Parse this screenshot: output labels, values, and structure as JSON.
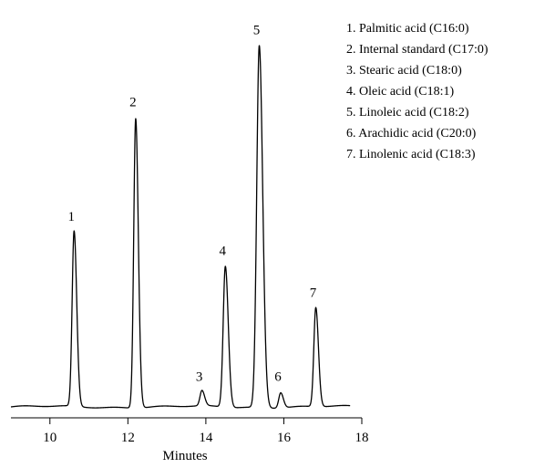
{
  "chart_data": {
    "type": "line",
    "title": "",
    "xlabel": "Minutes",
    "ylabel": "",
    "xlim": [
      9,
      18
    ],
    "ylim": [
      0,
      100
    ],
    "x_ticks": [
      10,
      12,
      14,
      16,
      18
    ],
    "x_tick_labels": [
      "10",
      "12",
      "14",
      "16",
      "18"
    ],
    "grid": false,
    "legend_position": "top-right",
    "line_color": "#000000",
    "baseline": 3,
    "series": [
      {
        "peaks": [
          {
            "label": "1",
            "x": 10.62,
            "y": 49
          },
          {
            "label": "2",
            "x": 12.2,
            "y": 79
          },
          {
            "label": "3",
            "x": 13.9,
            "y": 7
          },
          {
            "label": "4",
            "x": 14.5,
            "y": 40
          },
          {
            "label": "5",
            "x": 15.37,
            "y": 98
          },
          {
            "label": "6",
            "x": 15.92,
            "y": 7
          },
          {
            "label": "7",
            "x": 16.82,
            "y": 29
          }
        ]
      }
    ],
    "legend": [
      "1. Palmitic acid (C16:0)",
      "2. Internal standard (C17:0)",
      "3. Stearic acid (C18:0)",
      "4. Oleic acid (C18:1)",
      "5. Linoleic acid (C18:2)",
      "6. Arachidic acid (C20:0)",
      "7. Linolenic acid (C18:3)"
    ]
  }
}
